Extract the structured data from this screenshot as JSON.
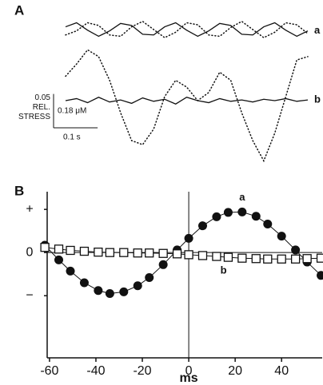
{
  "chart_data": [
    {
      "type": "line",
      "title": "A",
      "x": [
        0,
        0.025,
        0.05,
        0.075,
        0.1,
        0.125,
        0.15,
        0.175,
        0.2,
        0.225,
        0.25,
        0.275,
        0.3,
        0.325,
        0.35,
        0.375,
        0.4,
        0.425,
        0.45,
        0.475,
        0.5,
        0.525,
        0.55
      ],
      "xlim": [
        0,
        0.55
      ],
      "ylim": [
        -0.13,
        0.1
      ],
      "series": [
        {
          "name": "a",
          "color": "#111111",
          "line_style": "solid",
          "values": [
            0.084,
            0.09,
            0.079,
            0.07,
            0.078,
            0.089,
            0.086,
            0.073,
            0.072,
            0.084,
            0.09,
            0.079,
            0.07,
            0.078,
            0.089,
            0.086,
            0.073,
            0.072,
            0.084,
            0.09,
            0.079,
            0.07,
            0.078
          ]
        },
        {
          "color": "#111111",
          "line_style": "dotted",
          "values": [
            0.072,
            0.078,
            0.09,
            0.086,
            0.072,
            0.07,
            0.084,
            0.092,
            0.08,
            0.068,
            0.076,
            0.09,
            0.087,
            0.072,
            0.07,
            0.083,
            0.092,
            0.08,
            0.068,
            0.076,
            0.09,
            0.087,
            0.074
          ]
        },
        {
          "name": "b",
          "color": "#111111",
          "line_style": "solid",
          "values": [
            -0.025,
            -0.022,
            -0.028,
            -0.02,
            -0.027,
            -0.024,
            -0.029,
            -0.021,
            -0.026,
            -0.023,
            -0.03,
            -0.02,
            -0.025,
            -0.028,
            -0.022,
            -0.026,
            -0.024,
            -0.027,
            -0.023,
            -0.025,
            -0.022,
            -0.026,
            -0.024
          ]
        },
        {
          "color": "#111111",
          "line_style": "dotted",
          "values": [
            0.011,
            0.029,
            0.05,
            0.04,
            0.005,
            -0.043,
            -0.084,
            -0.09,
            -0.067,
            -0.019,
            0.005,
            -0.005,
            -0.025,
            -0.013,
            0.017,
            0.005,
            -0.043,
            -0.084,
            -0.114,
            -0.073,
            -0.019,
            0.035,
            0.04
          ]
        }
      ],
      "y_scale": 0.05,
      "y_scale_unit": [
        "REL.",
        "STRESS"
      ],
      "y_scale_alt": "0.18 μM",
      "x_scale": {
        "value": 0.1,
        "label": "0.1 s"
      }
    },
    {
      "type": "line",
      "title": "B",
      "xlabel": "ms",
      "x": [
        -62,
        -56,
        -51,
        -45,
        -39,
        -34,
        -28,
        -22,
        -17,
        -11,
        -5,
        0,
        6,
        12,
        17,
        23,
        29,
        34,
        40,
        46,
        51,
        57
      ],
      "xlim": [
        -61,
        57.5
      ],
      "ylim": [
        -2.44,
        1.41
      ],
      "xticks": [
        -60,
        -40,
        -20,
        0,
        20,
        40
      ],
      "yticks": [
        {
          "value": 1,
          "label": "+"
        },
        {
          "value": 0,
          "label": "0"
        },
        {
          "value": -1,
          "label": "−"
        }
      ],
      "series": [
        {
          "name": "a",
          "color": "#111111",
          "marker": "filled-circle",
          "values": [
            0.17,
            -0.17,
            -0.43,
            -0.7,
            -0.88,
            -0.95,
            -0.91,
            -0.77,
            -0.58,
            -0.28,
            0.06,
            0.33,
            0.62,
            0.83,
            0.93,
            0.94,
            0.84,
            0.66,
            0.38,
            0.06,
            -0.22,
            -0.53
          ]
        },
        {
          "name": "b",
          "color": "#111111",
          "marker": "open-square",
          "values": [
            0.12,
            0.08,
            0.05,
            0.03,
            0.01,
            0,
            0,
            -0.01,
            -0.01,
            -0.02,
            -0.03,
            -0.05,
            -0.07,
            -0.09,
            -0.11,
            -0.13,
            -0.14,
            -0.15,
            -0.15,
            -0.15,
            -0.14,
            -0.13
          ]
        }
      ]
    }
  ]
}
